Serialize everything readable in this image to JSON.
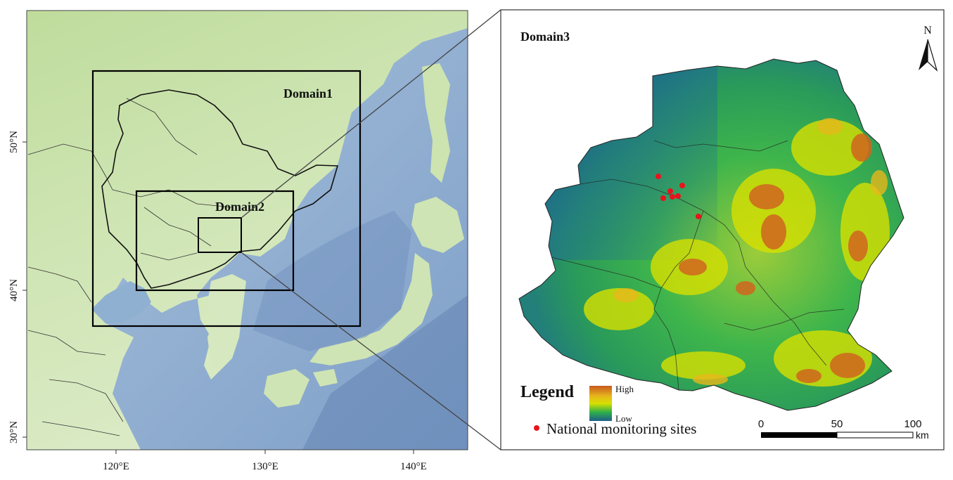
{
  "left_map": {
    "domains": [
      "Domain1",
      "Domain2"
    ],
    "lon_ticks": [
      "120°E",
      "130°E",
      "140°E"
    ],
    "lat_ticks": [
      "50°N",
      "40°N",
      "30°N"
    ]
  },
  "right_map": {
    "domain_label": "Domain3",
    "north_label": "N",
    "legend": {
      "title": "Legend",
      "elevation_high": "High",
      "elevation_low": "Low",
      "sites_label": "National monitoring sites",
      "site_color": "#e8141c"
    },
    "scale_bar": {
      "ticks": [
        "0",
        "50",
        "100"
      ],
      "unit": "km"
    },
    "site_count": 7
  },
  "colors": {
    "lowland_green": "#c9e1b3",
    "sea_blue": "#98b5d4",
    "deep_sea": "#6e8fbd",
    "elev_low": "#1f6f8f",
    "elev_mid": "#d8e000",
    "elev_high": "#c85a1e"
  }
}
